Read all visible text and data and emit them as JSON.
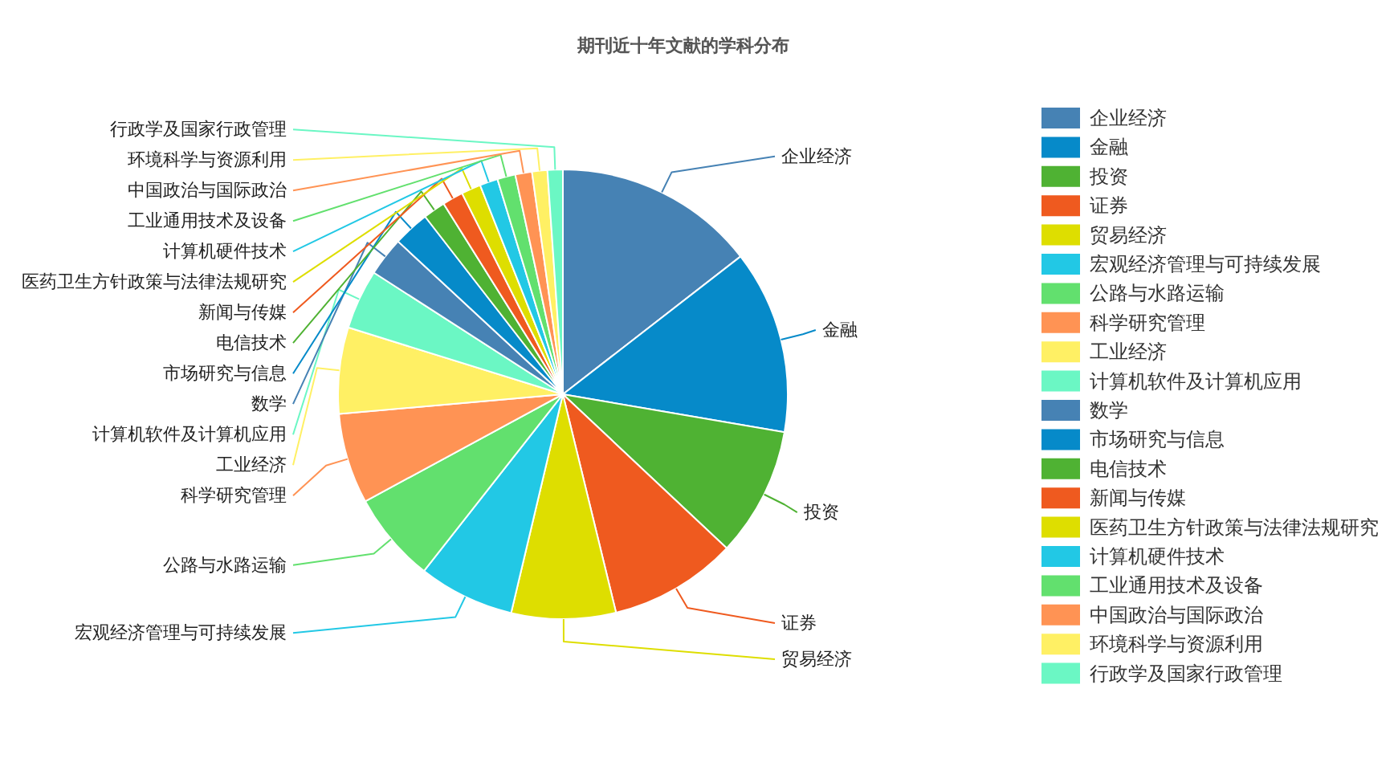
{
  "chart_data": {
    "type": "pie",
    "title": "期刊近十年文献的学科分布",
    "categories": [
      "企业经济",
      "金融",
      "投资",
      "证券",
      "贸易经济",
      "宏观经济管理与可持续发展",
      "公路与水路运输",
      "科学研究管理",
      "工业经济",
      "计算机软件及计算机应用",
      "数学",
      "市场研究与信息",
      "电信技术",
      "新闻与传媒",
      "医药卫生方针政策与法律法规研究",
      "计算机硬件技术",
      "工业通用技术及设备",
      "中国政治与国际政治",
      "环境科学与资源利用",
      "行政学及国家行政管理"
    ],
    "values": [
      14.5,
      13.2,
      9.3,
      9.2,
      7.5,
      6.9,
      6.5,
      6.5,
      6.2,
      4.3,
      2.8,
      2.6,
      1.6,
      1.5,
      1.4,
      1.3,
      1.3,
      1.2,
      1.1,
      1.1
    ],
    "colors": [
      "#4682b4",
      "#068ac9",
      "#4fb233",
      "#ef5a1f",
      "#dede00",
      "#22c8e5",
      "#62e06e",
      "#ff9354",
      "#fff064",
      "#6bf7c4",
      "#4682b4",
      "#068ac9",
      "#4fb233",
      "#ef5a1f",
      "#dede00",
      "#22c8e5",
      "#62e06e",
      "#ff9354",
      "#fff064",
      "#6bf7c4"
    ],
    "legend": "right"
  }
}
